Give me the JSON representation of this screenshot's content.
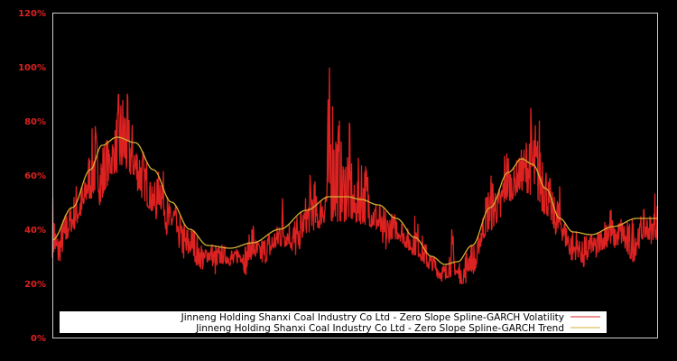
{
  "chart_data": {
    "type": "line",
    "title": "",
    "xlabel": "",
    "ylabel": "",
    "ylim": [
      0,
      120
    ],
    "y_ticks": [
      "0%",
      "20%",
      "40%",
      "60%",
      "80%",
      "100%",
      "120%"
    ],
    "y_tick_values": [
      0,
      20,
      40,
      60,
      80,
      100,
      120
    ],
    "grid": false,
    "legend_position": "lower center",
    "background": "#000000",
    "axis_color": "#cccccc",
    "tick_color": "#dd2222",
    "series": [
      {
        "name": "Jinneng Holding Shanxi Coal Industry Co Ltd - Zero Slope Spline-GARCH Volatility",
        "color": "#dd2222",
        "x_frac": [
          0.0,
          0.01,
          0.02,
          0.03,
          0.04,
          0.05,
          0.06,
          0.07,
          0.08,
          0.09,
          0.1,
          0.11,
          0.12,
          0.13,
          0.14,
          0.15,
          0.16,
          0.17,
          0.18,
          0.19,
          0.2,
          0.21,
          0.22,
          0.23,
          0.24,
          0.25,
          0.26,
          0.27,
          0.28,
          0.29,
          0.3,
          0.31,
          0.32,
          0.33,
          0.34,
          0.35,
          0.36,
          0.37,
          0.38,
          0.39,
          0.4,
          0.41,
          0.42,
          0.43,
          0.44,
          0.45,
          0.46,
          0.47,
          0.48,
          0.49,
          0.5,
          0.51,
          0.52,
          0.53,
          0.54,
          0.55,
          0.56,
          0.57,
          0.58,
          0.59,
          0.6,
          0.61,
          0.62,
          0.63,
          0.64,
          0.65,
          0.66,
          0.67,
          0.68,
          0.69,
          0.7,
          0.71,
          0.72,
          0.73,
          0.74,
          0.75,
          0.76,
          0.77,
          0.78,
          0.79,
          0.8,
          0.81,
          0.82,
          0.83,
          0.84,
          0.85,
          0.86,
          0.87,
          0.88,
          0.89,
          0.9,
          0.91,
          0.92,
          0.93,
          0.94,
          0.95,
          0.96,
          0.97,
          0.98,
          0.99,
          1.0
        ],
        "values": [
          55,
          33,
          40,
          47,
          58,
          52,
          70,
          82,
          58,
          68,
          74,
          90,
          95,
          80,
          66,
          62,
          58,
          52,
          68,
          45,
          48,
          40,
          34,
          38,
          32,
          30,
          36,
          28,
          34,
          33,
          31,
          36,
          28,
          46,
          34,
          33,
          36,
          40,
          56,
          42,
          36,
          40,
          52,
          64,
          48,
          60,
          103,
          88,
          70,
          80,
          56,
          72,
          66,
          52,
          46,
          38,
          44,
          48,
          42,
          40,
          45,
          38,
          34,
          30,
          26,
          24,
          40,
          25,
          22,
          30,
          28,
          46,
          57,
          62,
          50,
          74,
          62,
          66,
          72,
          85,
          78,
          82,
          60,
          52,
          56,
          40,
          34,
          36,
          30,
          38,
          35,
          42,
          54,
          40,
          46,
          36,
          34,
          40,
          48,
          42,
          62
        ]
      },
      {
        "name": "Jinneng Holding Shanxi Coal Industry Co Ltd - Zero Slope Spline-GARCH Trend",
        "color": "#d4b030",
        "x_frac": [
          0.0,
          0.033,
          0.063,
          0.082,
          0.107,
          0.137,
          0.167,
          0.197,
          0.227,
          0.257,
          0.294,
          0.331,
          0.376,
          0.42,
          0.458,
          0.488,
          0.51,
          0.539,
          0.569,
          0.599,
          0.627,
          0.649,
          0.67,
          0.694,
          0.724,
          0.754,
          0.776,
          0.794,
          0.816,
          0.839,
          0.861,
          0.891,
          0.928,
          0.966,
          1.0
        ],
        "values": [
          36,
          48,
          62,
          71,
          74,
          72,
          62,
          50,
          40,
          34,
          33,
          35,
          40,
          47,
          52,
          52,
          51,
          49,
          44,
          37,
          30,
          27,
          28,
          34,
          48,
          61,
          66,
          64,
          55,
          44,
          39,
          38,
          41,
          44,
          44
        ]
      }
    ]
  },
  "legend": {
    "items": [
      {
        "label": "Jinneng Holding Shanxi Coal Industry Co Ltd - Zero Slope Spline-GARCH Volatility",
        "color": "#dd2222"
      },
      {
        "label": "Jinneng Holding Shanxi Coal Industry Co Ltd - Zero Slope Spline-GARCH Trend",
        "color": "#d4b030"
      }
    ]
  }
}
